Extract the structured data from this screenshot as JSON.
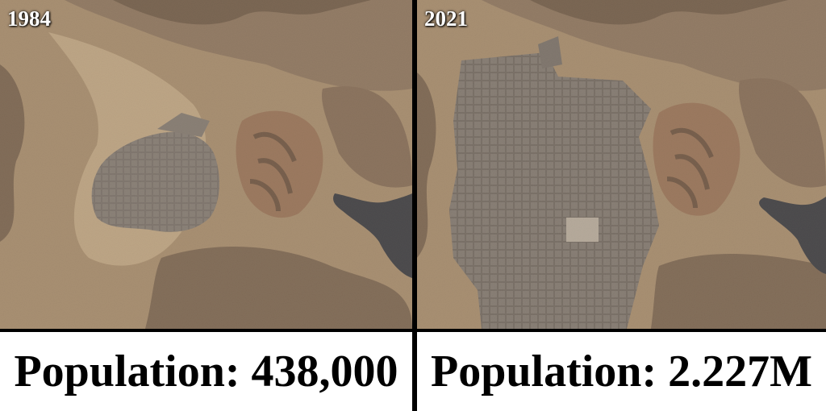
{
  "panels": [
    {
      "year": "1984",
      "caption": "Population: 438,000"
    },
    {
      "year": "2021",
      "caption": "Population: 2.227M"
    }
  ],
  "colors": {
    "desert": "#b39a7d",
    "sand": "#d9c3a0",
    "mountain": "#6e5a48",
    "city": "#6f7074",
    "lake": "#0f1f38",
    "divider": "#000000"
  }
}
